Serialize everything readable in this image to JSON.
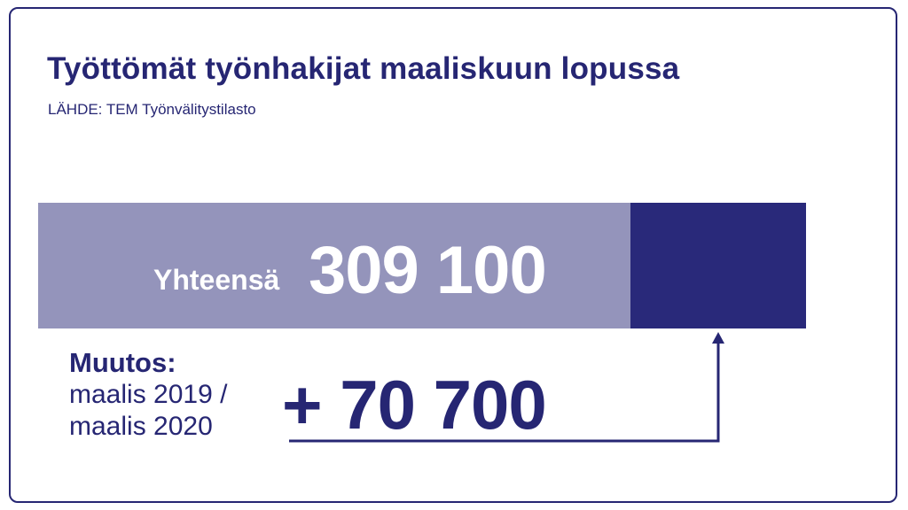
{
  "title": "Työttömät työnhakijat maaliskuun lopussa",
  "source": "LÄHDE: TEM Työnvälitystilasto",
  "colors": {
    "total_bar": "#9494bb",
    "change_bar": "#29297a",
    "text": "#262673",
    "border": "#262673"
  },
  "total": {
    "label": "Yhteensä",
    "value_text": "309 100"
  },
  "change": {
    "heading": "Muutos:",
    "period_line1": "maalis 2019 /",
    "period_line2": "maalis 2020",
    "value_text": "+ 70 700"
  },
  "chart_data": {
    "type": "bar",
    "orientation": "horizontal-stacked",
    "title": "Työttömät työnhakijat maaliskuun lopussa",
    "source": "LÄHDE: TEM Työnvälitystilasto",
    "total": 309100,
    "change": 70700,
    "segments": [
      {
        "value": 238400,
        "color": "#9494bb"
      },
      {
        "value": 70700,
        "color": "#29297a"
      }
    ]
  }
}
